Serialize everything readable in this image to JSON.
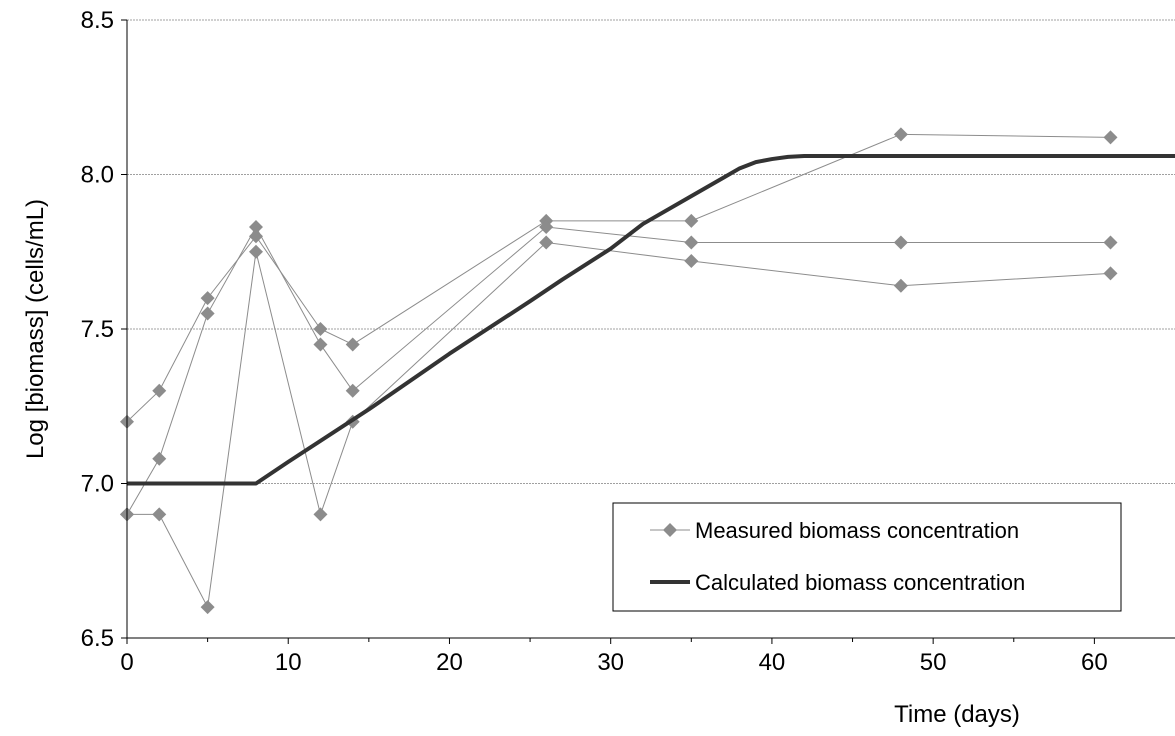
{
  "chart_data": {
    "type": "line",
    "title": "",
    "xlabel": "Time (days)",
    "ylabel": "Log [biomass] (cells/mL)",
    "xlim": [
      0,
      65
    ],
    "ylim": [
      6.5,
      8.5
    ],
    "x_ticks": [
      "0",
      "10",
      "20",
      "30",
      "40",
      "50",
      "60"
    ],
    "x_tick_values": [
      0,
      10,
      20,
      30,
      40,
      50,
      60
    ],
    "y_ticks": [
      "6.5",
      "7.0",
      "7.5",
      "8.0",
      "8.5"
    ],
    "y_tick_values": [
      6.5,
      7.0,
      7.5,
      8.0,
      8.5
    ],
    "grid": "horizontal",
    "legend_position": "bottom-right",
    "legend": [
      "Measured biomass concentration",
      "Calculated biomass concentration"
    ],
    "series": [
      {
        "name": "Measured biomass concentration",
        "style": "markers",
        "replicates": [
          {
            "x": [
              0,
              2,
              5,
              8,
              12,
              14,
              26,
              35,
              48,
              61
            ],
            "y": [
              7.2,
              7.3,
              7.6,
              7.8,
              7.5,
              7.45,
              7.85,
              7.85,
              8.13,
              8.12
            ]
          },
          {
            "x": [
              0,
              2,
              5,
              8,
              12,
              14,
              26,
              35,
              48,
              61
            ],
            "y": [
              6.9,
              7.08,
              7.55,
              7.83,
              7.45,
              7.3,
              7.83,
              7.78,
              7.78,
              7.78
            ]
          },
          {
            "x": [
              0,
              2,
              5,
              8,
              12,
              14,
              26,
              35,
              48,
              61
            ],
            "y": [
              6.9,
              6.9,
              6.6,
              7.75,
              6.9,
              7.2,
              7.78,
              7.72,
              7.64,
              7.68
            ]
          }
        ]
      },
      {
        "name": "Calculated biomass concentration",
        "style": "line",
        "x": [
          0,
          8,
          10,
          15,
          20,
          25,
          27,
          30,
          32,
          35,
          37,
          38,
          39,
          40,
          41,
          42,
          65
        ],
        "y": [
          7.0,
          7.0,
          7.07,
          7.24,
          7.42,
          7.59,
          7.66,
          7.76,
          7.84,
          7.93,
          7.99,
          8.02,
          8.04,
          8.05,
          8.057,
          8.06,
          8.06
        ]
      }
    ],
    "colors": {
      "measured": "#8c8c8c",
      "calculated": "#333333",
      "grid": "#a0a0a0"
    }
  }
}
